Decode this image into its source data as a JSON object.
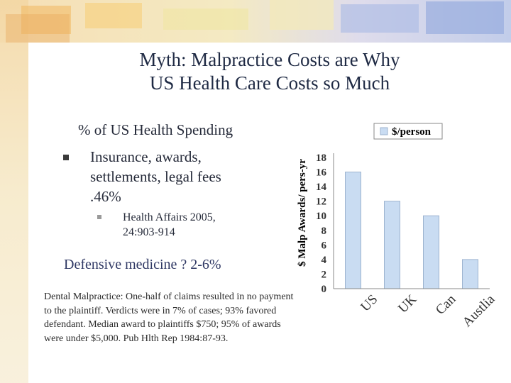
{
  "slide": {
    "title_line1": "Myth: Malpractice Costs are Why",
    "title_line2": "US Health Care Costs so Much",
    "subheading": "% of US Health Spending",
    "bullet1": "Insurance, awards, settlements, legal fees .46%",
    "bullet1_sub": "Health Affairs 2005, 24:903-914",
    "defensive_medicine": "Defensive medicine ? 2-6%",
    "dental_note": "Dental Malpractice: One-half of claims resulted in no payment to the plaintiff. Verdicts were in 7% of cases; 93% favored  defendant. Median award to plaintiffs $750; 95% of awards were under $5,000. Pub Hlth Rep 1984:87-93."
  },
  "colors": {
    "bar_fill": "#c9dcf2",
    "bar_stroke": "#9db3cf",
    "axis": "#888888",
    "chart_text": "#333333"
  },
  "chart_data": {
    "type": "bar",
    "categories": [
      "US",
      "UK",
      "Can",
      "Austlia"
    ],
    "series": [
      {
        "name": "$/person",
        "values": [
          16,
          12,
          10,
          4
        ]
      }
    ],
    "ylabel": "$ Malp Awards/ pers-yr",
    "xlabel": "",
    "ylim": [
      0,
      18
    ],
    "yticks": [
      0,
      2,
      4,
      6,
      8,
      10,
      12,
      14,
      16,
      18
    ],
    "grid": false,
    "legend": "top-right"
  }
}
